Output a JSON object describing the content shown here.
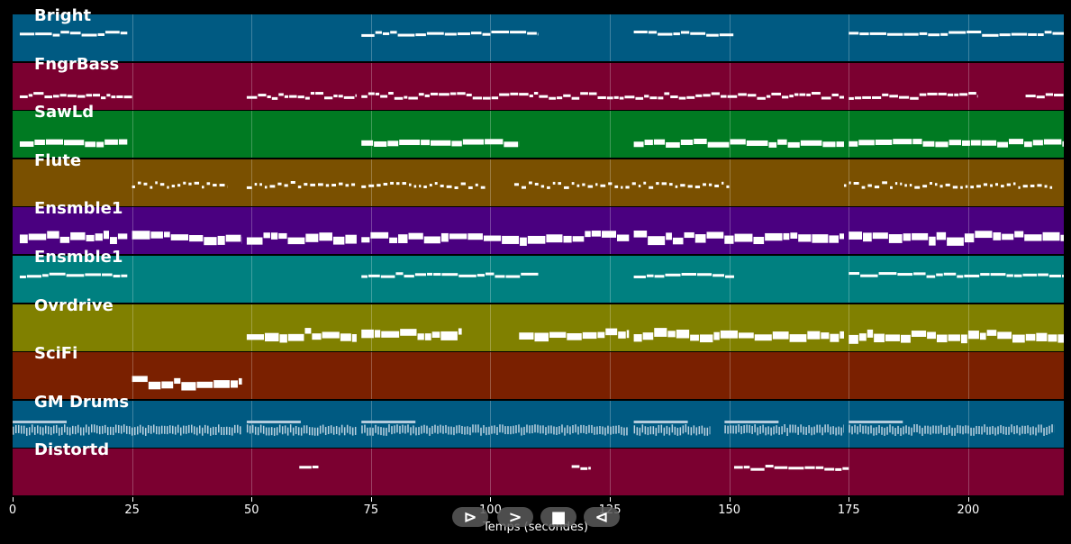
{
  "chart_data": {
    "type": "piano-roll",
    "x_axis": {
      "label": "Temps (secondes)",
      "range": [
        0,
        220
      ],
      "ticks": [
        0,
        25,
        50,
        75,
        100,
        125,
        150,
        175,
        200
      ]
    },
    "tracks": [
      {
        "name": "Bright",
        "color": "#005a82",
        "segments": [
          [
            1.5,
            24
          ],
          [
            73,
            110
          ],
          [
            130,
            151
          ],
          [
            175,
            220
          ]
        ],
        "style": "thin"
      },
      {
        "name": "FngrBass",
        "color": "#7b0030",
        "segments": [
          [
            1.5,
            25
          ],
          [
            49,
            72
          ],
          [
            73,
            174
          ],
          [
            175,
            202
          ],
          [
            212,
            220
          ]
        ],
        "style": "dashed"
      },
      {
        "name": "SawLd",
        "color": "#007a22",
        "segments": [
          [
            1.5,
            24
          ],
          [
            73,
            106
          ],
          [
            130,
            174
          ],
          [
            175,
            220
          ]
        ],
        "style": "thick"
      },
      {
        "name": "Flute",
        "color": "#7a5000",
        "segments": [
          [
            25,
            45
          ],
          [
            49,
            72
          ],
          [
            73,
            99
          ],
          [
            105,
            150
          ],
          [
            174,
            218
          ]
        ],
        "style": "dotted"
      },
      {
        "name": "Ensmble1",
        "color": "#4a0080",
        "segments": [
          [
            1.5,
            24
          ],
          [
            25,
            48
          ],
          [
            49,
            72
          ],
          [
            73,
            129
          ],
          [
            130,
            174
          ],
          [
            175,
            220
          ]
        ],
        "style": "block"
      },
      {
        "name": "Ensmble1",
        "color": "#008080",
        "segments": [
          [
            1.5,
            24
          ],
          [
            73,
            110
          ],
          [
            130,
            151
          ],
          [
            175,
            220
          ]
        ],
        "style": "thin"
      },
      {
        "name": "Ovrdrive",
        "color": "#808000",
        "segments": [
          [
            49,
            72
          ],
          [
            73,
            94
          ],
          [
            106,
            129
          ],
          [
            130,
            174
          ],
          [
            175,
            220
          ]
        ],
        "style": "block"
      },
      {
        "name": "SciFi",
        "color": "#7a2000",
        "segments": [
          [
            25,
            48
          ]
        ],
        "style": "block"
      },
      {
        "name": "GM Drums",
        "color": "#005a82",
        "segments": [
          [
            0,
            48
          ],
          [
            49,
            72
          ],
          [
            73,
            129
          ],
          [
            130,
            146
          ],
          [
            149,
            174
          ],
          [
            175,
            218
          ]
        ],
        "style": "drums"
      },
      {
        "name": "Distortd",
        "color": "#7b0030",
        "segments": [
          [
            60,
            64
          ],
          [
            117,
            121
          ],
          [
            151,
            175
          ]
        ],
        "style": "thin"
      }
    ]
  },
  "transport": {
    "play_label": "⊳",
    "forward_label": ">",
    "stop_label": "■",
    "back_label": "⊲"
  }
}
